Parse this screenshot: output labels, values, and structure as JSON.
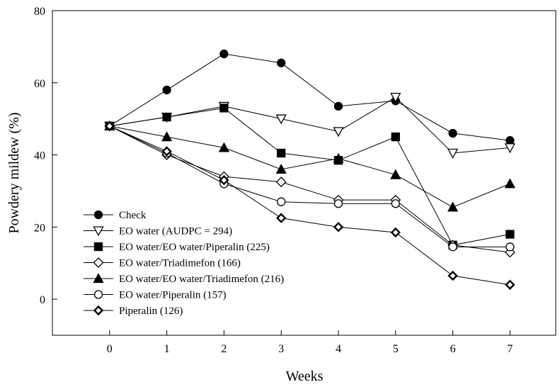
{
  "chart_data": {
    "type": "line",
    "xlabel": "Weeks",
    "ylabel": "Powdery mildew (%)",
    "xlim": [
      -1,
      7.8
    ],
    "ylim": [
      -10,
      80
    ],
    "xticks": [
      "0",
      "1",
      "2",
      "3",
      "4",
      "5",
      "6",
      "7"
    ],
    "yticks": [
      "0",
      "20",
      "40",
      "60",
      "80"
    ],
    "grid": false,
    "legend_position": "lower-left",
    "x": [
      0,
      1,
      2,
      3,
      4,
      5,
      6,
      7
    ],
    "series": [
      {
        "name": "Check",
        "marker": "circle-filled",
        "values": [
          48,
          58,
          68,
          65.5,
          53.5,
          55,
          46,
          44
        ]
      },
      {
        "name": "EO water (AUDPC = 294)",
        "marker": "triangle-down-open",
        "values": [
          48,
          50.5,
          53.5,
          50,
          46.5,
          56,
          40.5,
          42
        ]
      },
      {
        "name": "EO water/EO water/Piperalin (225)",
        "marker": "square-filled",
        "values": [
          48,
          50.5,
          53,
          40.5,
          38.5,
          45,
          15,
          18
        ]
      },
      {
        "name": "EO water/Triadimefon (166)",
        "marker": "diamond-open",
        "values": [
          48,
          40,
          34,
          32.5,
          27.5,
          27.5,
          15,
          13
        ]
      },
      {
        "name": "EO water/EO water/Triadimefon (216)",
        "marker": "triangle-up-filled",
        "values": [
          48,
          45,
          42,
          36,
          39,
          34.5,
          25.5,
          32
        ]
      },
      {
        "name": "EO water/Piperalin (157)",
        "marker": "circle-open",
        "values": [
          48,
          40.5,
          32,
          27,
          26.5,
          26.5,
          14.5,
          14.5
        ]
      },
      {
        "name": "Piperalin (126)",
        "marker": "diamond-open-bold",
        "values": [
          48,
          41,
          33,
          22.5,
          20,
          18.5,
          6.5,
          4
        ]
      }
    ]
  }
}
